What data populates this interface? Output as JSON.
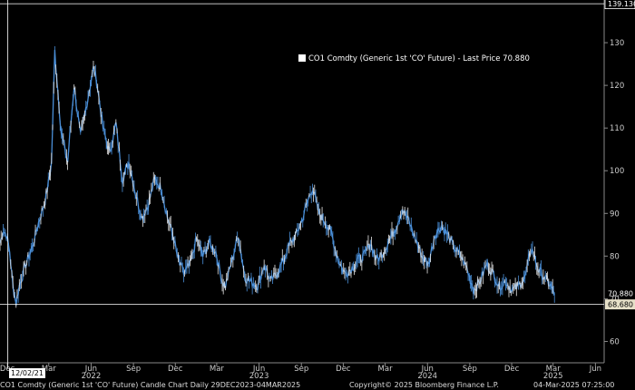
{
  "legend": {
    "text": "CO1 Comdty (Generic 1st 'CO' Future) - Last Price 70.880",
    "color": "#ffffff"
  },
  "footer": {
    "left": "CO1 Comdty (Generic 1st 'CO' Future) Candle Chart  Daily 29DEC2023-04MAR2025",
    "center": "Copyright© 2025 Bloomberg Finance L.P.",
    "right": "04-Mar-2025 07:25:00"
  },
  "crosshair": {
    "date_label": "12/02/21",
    "price": 139.13,
    "price_label": "139.130"
  },
  "colors": {
    "background": "#000000",
    "series": "#4a8fd8",
    "series_light": "#e8e8e8",
    "grid": "#ffffff",
    "last_price_tag": "#000000",
    "low_tag": "#e6e0c8"
  },
  "chart_data": {
    "type": "line",
    "title": "",
    "xlabel": "",
    "ylabel": "",
    "grid": false,
    "legend_position": "top-right",
    "ylim": [
      55,
      140
    ],
    "xlim": [
      "2021-11-15",
      "2025-06-20"
    ],
    "x_ticks": [
      {
        "date": "2021-12-01",
        "label": "Dec",
        "year": ""
      },
      {
        "date": "2022-03-01",
        "label": "Mar",
        "year": ""
      },
      {
        "date": "2022-06-01",
        "label": "Jun",
        "year": "2022"
      },
      {
        "date": "2022-09-01",
        "label": "Sep",
        "year": ""
      },
      {
        "date": "2022-12-01",
        "label": "Dec",
        "year": ""
      },
      {
        "date": "2023-03-01",
        "label": "Mar",
        "year": ""
      },
      {
        "date": "2023-06-01",
        "label": "Jun",
        "year": "2023"
      },
      {
        "date": "2023-09-01",
        "label": "Sep",
        "year": ""
      },
      {
        "date": "2023-12-01",
        "label": "Dec",
        "year": ""
      },
      {
        "date": "2024-03-01",
        "label": "Mar",
        "year": ""
      },
      {
        "date": "2024-06-01",
        "label": "Jun",
        "year": "2024"
      },
      {
        "date": "2024-09-01",
        "label": "Sep",
        "year": ""
      },
      {
        "date": "2024-12-01",
        "label": "Dec",
        "year": ""
      },
      {
        "date": "2025-03-01",
        "label": "Mar",
        "year": "2025"
      },
      {
        "date": "2025-06-01",
        "label": "Jun",
        "year": ""
      }
    ],
    "y_ticks": [
      60,
      70,
      80,
      90,
      100,
      110,
      120,
      130
    ],
    "last_price": 70.88,
    "last_price_label": "70.880",
    "period_low": 68.68,
    "period_low_label": "68.680",
    "series": [
      {
        "name": "CO1 Comdty (Generic 1st 'CO' Future) - Last Price",
        "x": [
          "2021-11-15",
          "2021-11-22",
          "2021-11-29",
          "2021-12-06",
          "2021-12-13",
          "2021-12-20",
          "2021-12-27",
          "2022-01-10",
          "2022-01-24",
          "2022-02-07",
          "2022-02-21",
          "2022-02-28",
          "2022-03-07",
          "2022-03-14",
          "2022-03-28",
          "2022-04-11",
          "2022-04-25",
          "2022-05-09",
          "2022-05-23",
          "2022-06-06",
          "2022-06-13",
          "2022-06-27",
          "2022-07-11",
          "2022-07-25",
          "2022-08-08",
          "2022-08-22",
          "2022-09-05",
          "2022-09-19",
          "2022-10-03",
          "2022-10-17",
          "2022-10-31",
          "2022-11-14",
          "2022-11-28",
          "2022-12-05",
          "2022-12-19",
          "2023-01-02",
          "2023-01-16",
          "2023-01-30",
          "2023-02-13",
          "2023-02-27",
          "2023-03-13",
          "2023-03-20",
          "2023-04-03",
          "2023-04-17",
          "2023-05-01",
          "2023-05-15",
          "2023-05-29",
          "2023-06-12",
          "2023-06-26",
          "2023-07-10",
          "2023-07-24",
          "2023-08-07",
          "2023-08-21",
          "2023-09-04",
          "2023-09-18",
          "2023-09-25",
          "2023-10-09",
          "2023-10-23",
          "2023-11-06",
          "2023-11-20",
          "2023-12-04",
          "2023-12-18",
          "2024-01-01",
          "2024-01-15",
          "2024-01-29",
          "2024-02-12",
          "2024-02-26",
          "2024-03-11",
          "2024-03-25",
          "2024-04-08",
          "2024-04-22",
          "2024-05-06",
          "2024-05-20",
          "2024-06-03",
          "2024-06-17",
          "2024-07-01",
          "2024-07-15",
          "2024-07-29",
          "2024-08-12",
          "2024-08-26",
          "2024-09-09",
          "2024-09-23",
          "2024-10-07",
          "2024-10-21",
          "2024-11-04",
          "2024-11-18",
          "2024-12-02",
          "2024-12-16",
          "2024-12-30",
          "2025-01-13",
          "2025-01-27",
          "2025-02-10",
          "2025-02-24",
          "2025-03-04"
        ],
        "values": [
          83,
          86,
          85,
          81,
          73,
          69,
          73,
          78,
          82,
          88,
          93,
          97,
          102,
          128,
          109,
          102,
          120,
          108,
          116,
          124,
          121,
          110,
          104,
          111,
          98,
          102,
          95,
          89,
          92,
          98,
          96,
          89,
          84,
          80,
          76,
          78,
          84,
          80,
          83,
          81,
          74,
          73,
          79,
          85,
          75,
          74,
          73,
          78,
          74,
          76,
          79,
          83,
          85,
          89,
          94,
          96,
          90,
          88,
          85,
          79,
          76,
          77,
          79,
          80,
          83,
          79,
          81,
          84,
          87,
          91,
          88,
          84,
          80,
          78,
          85,
          87,
          85,
          82,
          80,
          77,
          72,
          74,
          78,
          76,
          73,
          74,
          72,
          73,
          75,
          82,
          77,
          75,
          73,
          71
        ]
      }
    ]
  }
}
